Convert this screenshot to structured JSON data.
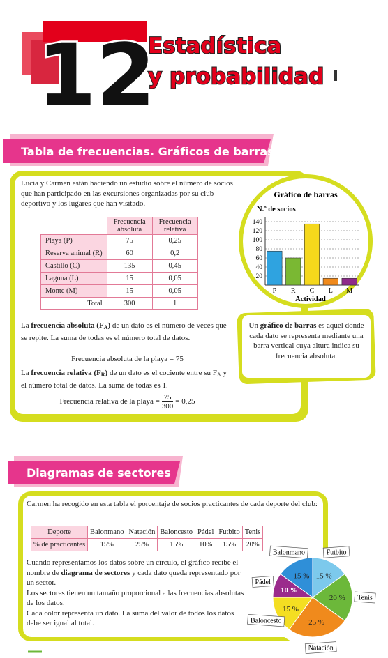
{
  "header": {
    "number": "12",
    "title_lines": [
      "Estadística",
      "y probabilidad"
    ]
  },
  "section1": {
    "title": "Tabla de frecuencias. Gráficos de barras",
    "intro": "Lucía y Carmen están haciendo un estudio sobre el número de socios que han participado en las excursiones organizadas por su club deportivo y los lugares que han visitado.",
    "table": {
      "headers": [
        "Frecuencia absoluta",
        "Frecuencia relativa"
      ],
      "rows": [
        [
          "Playa (P)",
          "75",
          "0,25"
        ],
        [
          "Reserva animal (R)",
          "60",
          "0,2"
        ],
        [
          "Castillo (C)",
          "135",
          "0,45"
        ],
        [
          "Laguna (L)",
          "15",
          "0,05"
        ],
        [
          "Monte (M)",
          "15",
          "0,05"
        ],
        [
          "Total",
          "300",
          "1"
        ]
      ]
    },
    "paragraph1": [
      {
        "text": "La "
      },
      {
        "text": "frecuencia absoluta (F",
        "b": true
      },
      {
        "text": "A",
        "b": true,
        "sub": true
      },
      {
        "text": ")",
        "b": true
      },
      {
        "text": " de un dato es el número de veces que se repite. La suma de todas es el número total de datos."
      }
    ],
    "formula1": "Frecuencia absoluta de la playa = 75",
    "paragraph2": [
      {
        "text": "La "
      },
      {
        "text": "frecuencia relativa (F",
        "b": true
      },
      {
        "text": "R",
        "b": true,
        "sub": true
      },
      {
        "text": ")",
        "b": true
      },
      {
        "text": " de un dato es el cociente entre su F"
      },
      {
        "text": "A",
        "sub": true
      },
      {
        "text": " y el número total de datos. La suma de todas es 1."
      }
    ],
    "formula2": {
      "lhs": "Frecuencia relativa de la playa =",
      "num": "75",
      "den": "300",
      "rhs": "= 0,25"
    },
    "note": [
      {
        "text": "Un "
      },
      {
        "text": "gráfico de barras",
        "b": true
      },
      {
        "text": " es aquel donde cada dato se representa mediante una barra vertical cuya altura indica su frecuencia absoluta."
      }
    ]
  },
  "section2": {
    "title": "Diagramas de sectores",
    "intro": "Carmen ha recogido en esta tabla el porcentaje de socios practicantes de cada deporte del club:",
    "table": {
      "rows": [
        [
          "Deporte",
          "Balonmano",
          "Natación",
          "Baloncesto",
          "Pádel",
          "Futbito",
          "Tenis"
        ],
        [
          "% de practicantes",
          "15%",
          "25%",
          "15%",
          "10%",
          "15%",
          "20%"
        ]
      ]
    },
    "paragraphs": [
      [
        {
          "text": "Cuando representamos los datos sobre un círculo, el gráfico recibe el nombre de "
        },
        {
          "text": "diagrama de sectores",
          "b": true
        },
        {
          "text": " y cada dato queda representado por un sector."
        }
      ],
      [
        {
          "text": "Los sectores tienen un tamaño proporcional a las frecuencias absolutas de los datos."
        }
      ],
      [
        {
          "text": "Cada color representa un dato. La suma del valor de todos los datos debe ser igual al total."
        }
      ]
    ]
  },
  "chart_data": [
    {
      "type": "bar",
      "title": "Gráfico de barras",
      "y_label": "N.º de socios",
      "x_label": "Actividad",
      "categories": [
        "P",
        "R",
        "C",
        "L",
        "M"
      ],
      "values": [
        75,
        60,
        135,
        15,
        15
      ],
      "colors": [
        "#2fa3e0",
        "#7ab833",
        "#f5d81c",
        "#f08a1c",
        "#8e2a8a"
      ],
      "ylim": [
        0,
        140
      ],
      "yticks": [
        20,
        40,
        60,
        80,
        100,
        120,
        140
      ],
      "grid": true
    },
    {
      "type": "pie",
      "categories": [
        "Futbito",
        "Tenis",
        "Natación",
        "Baloncesto",
        "Pádel",
        "Balonmano"
      ],
      "values": [
        15,
        20,
        25,
        15,
        10,
        15
      ],
      "value_labels": [
        "15 %",
        "20 %",
        "25 %",
        "15 %",
        "10 %",
        "15 %"
      ],
      "colors": [
        "#7cc9ec",
        "#6cb83a",
        "#f08a1c",
        "#f4de22",
        "#9b2b8c",
        "#2f8fd8"
      ]
    }
  ]
}
